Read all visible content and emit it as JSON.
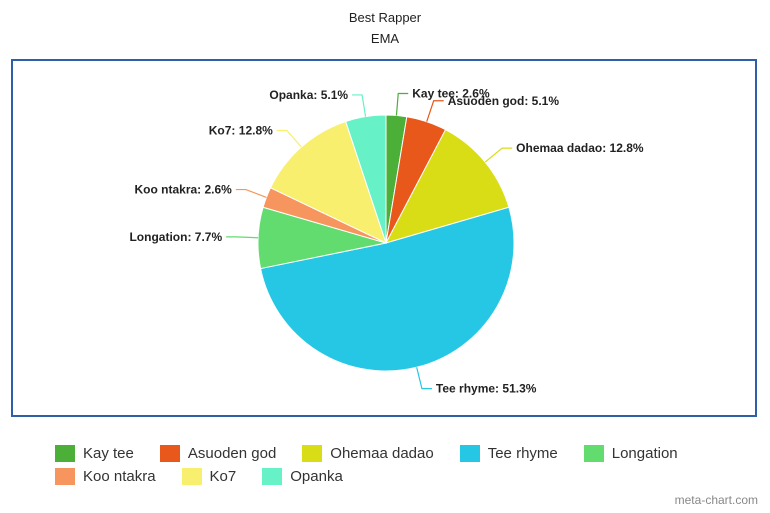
{
  "chart_data": {
    "type": "pie",
    "title": "Best Rapper",
    "subtitle": "EMA",
    "slices": [
      {
        "label": "Kay tee",
        "value": 2.6,
        "display": "2.6%",
        "color": "#4caf38"
      },
      {
        "label": "Asuoden god",
        "value": 5.1,
        "display": "5.1%",
        "color": "#e8581a"
      },
      {
        "label": "Ohemaa dadao",
        "value": 12.8,
        "display": "12.8%",
        "color": "#d9dd16"
      },
      {
        "label": "Tee rhyme",
        "value": 51.3,
        "display": "51.3%",
        "color": "#25c7e5"
      },
      {
        "label": "Longation",
        "value": 7.7,
        "display": "7.7%",
        "color": "#62dc6e"
      },
      {
        "label": "Koo ntakra",
        "value": 2.6,
        "display": "2.6%",
        "color": "#f6955d"
      },
      {
        "label": "Ko7",
        "value": 12.8,
        "display": "12.8%",
        "color": "#f8ef6e"
      },
      {
        "label": "Opanka",
        "value": 5.1,
        "display": "5.1%",
        "color": "#66f1c7"
      }
    ],
    "legend_position": "bottom"
  },
  "credit": "meta-chart.com"
}
